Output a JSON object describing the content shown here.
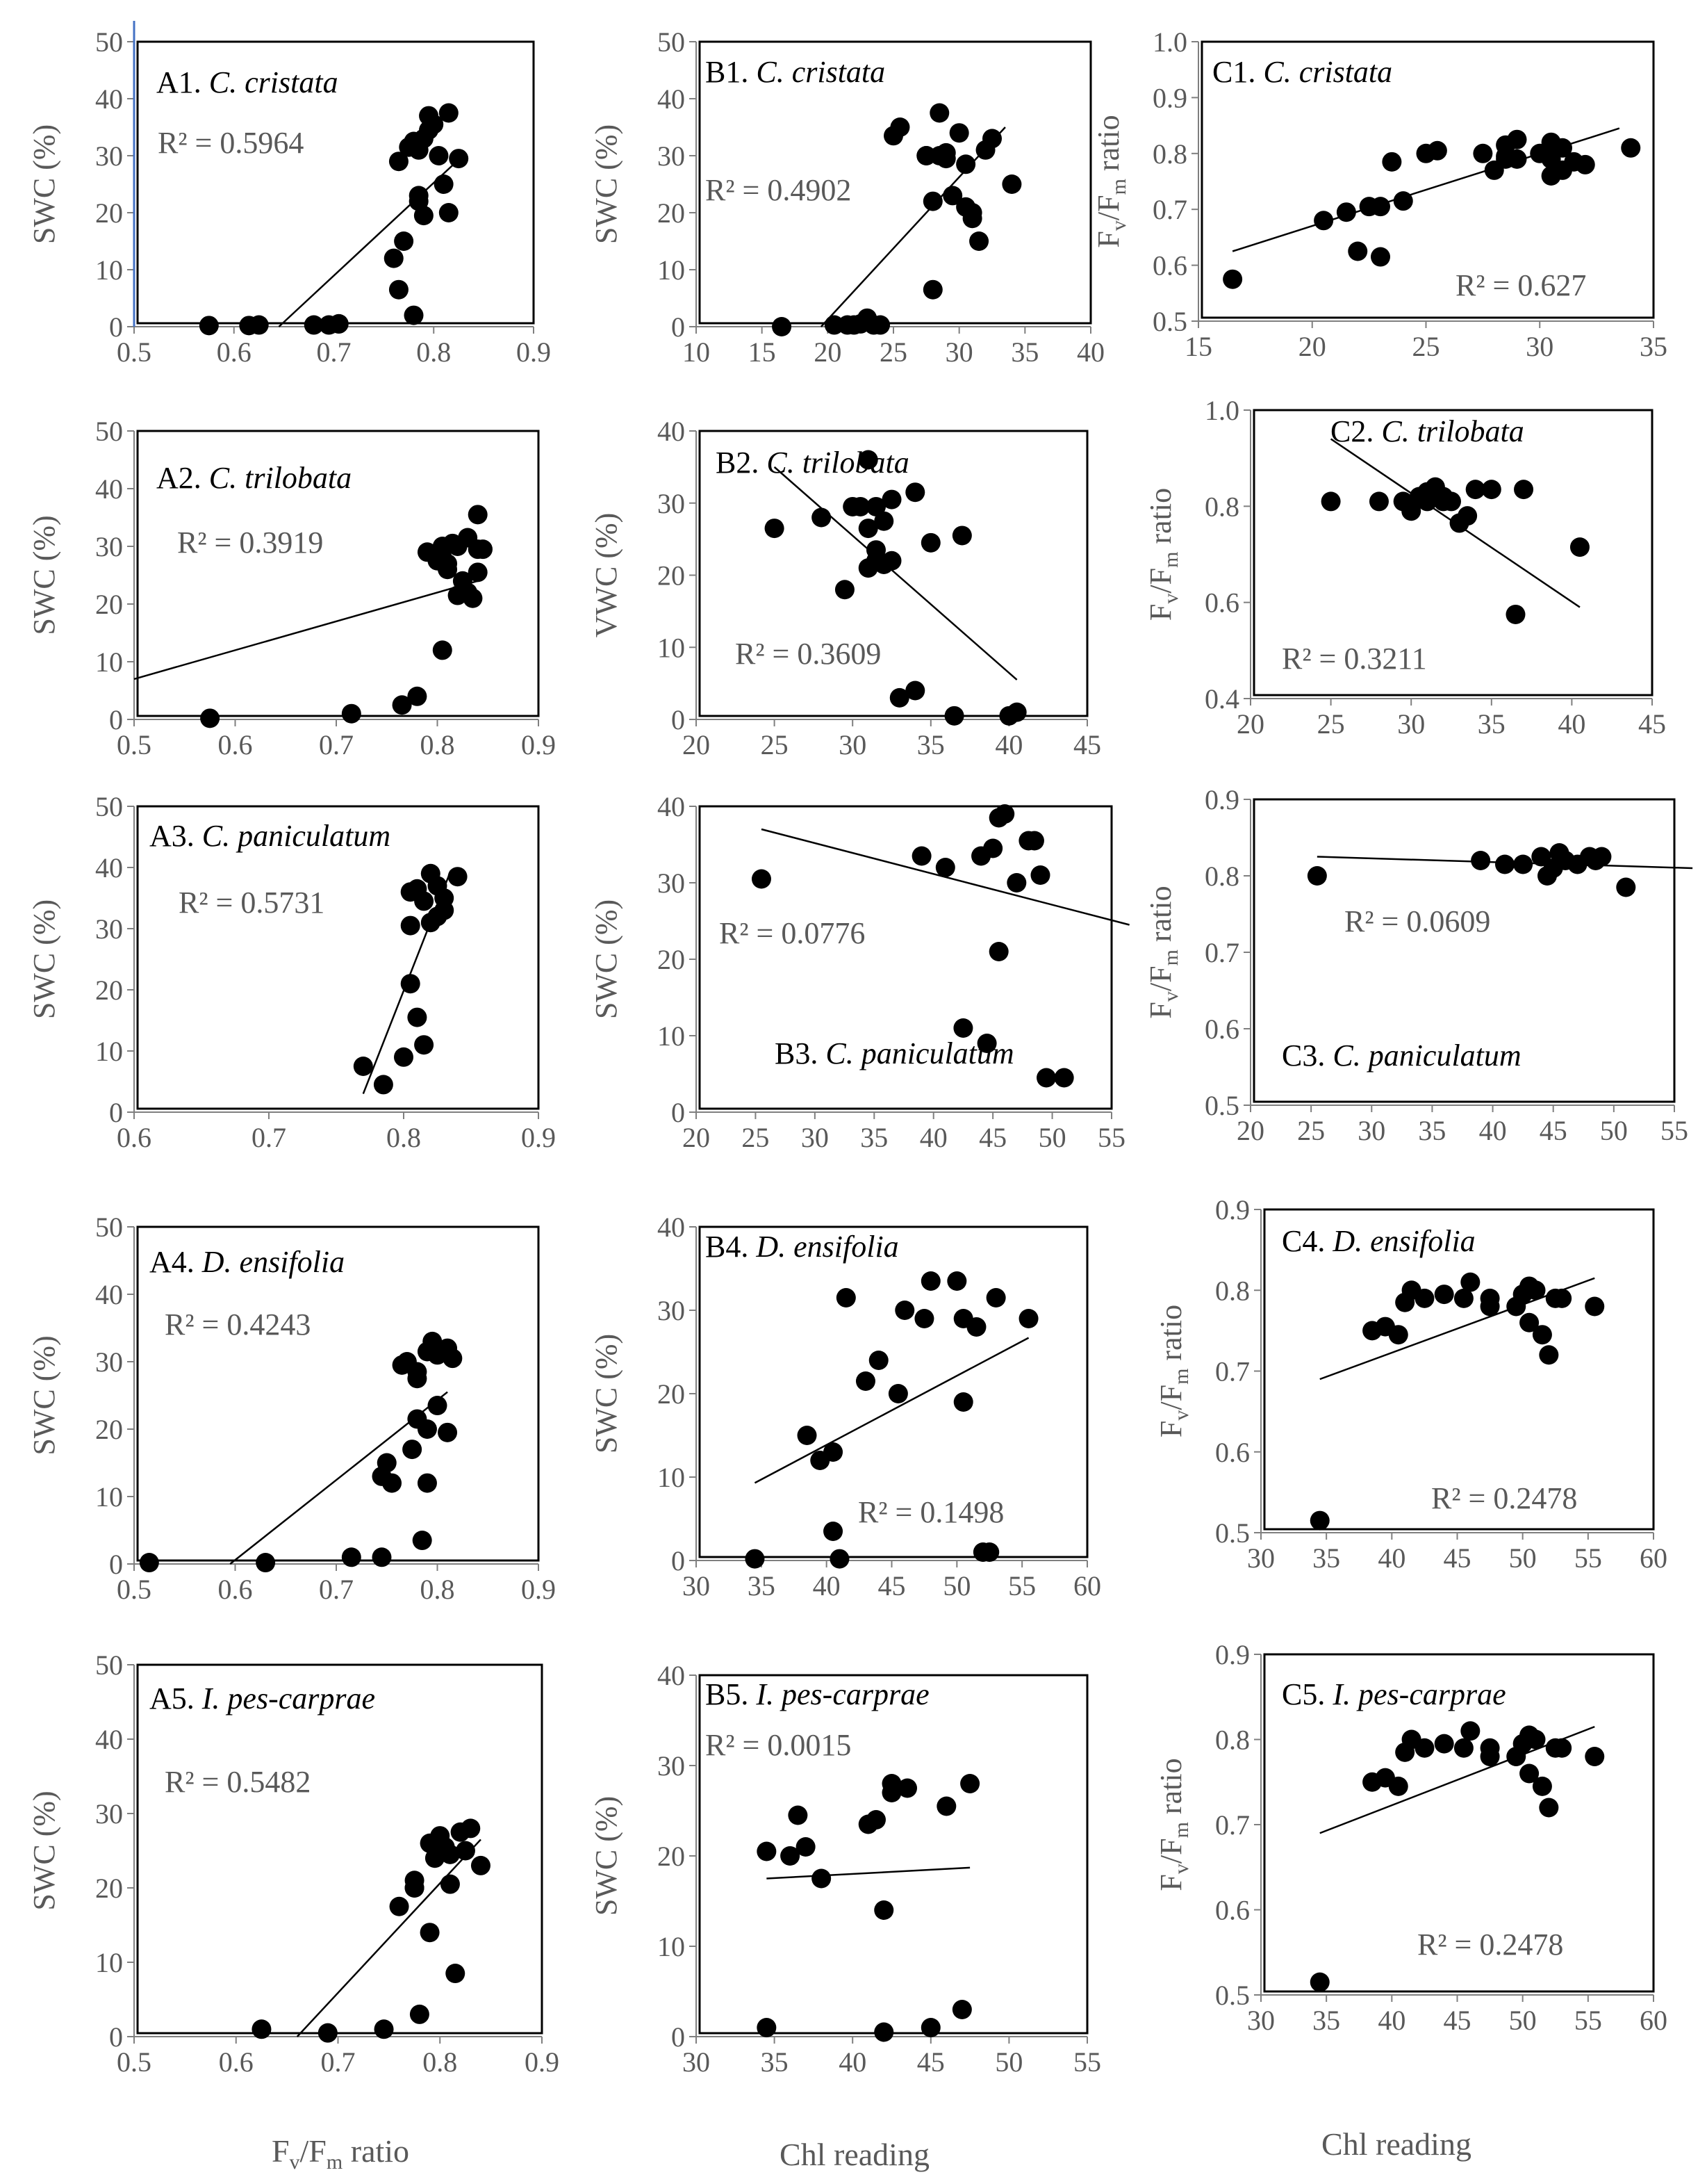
{
  "x_axis_labels": {
    "fvfm": "Fv/Fm ratio",
    "chl": "Chl reading"
  },
  "chart_data": [
    {
      "id": "A1",
      "type": "scatter",
      "label": "A1.",
      "species": "C. cristata",
      "r2_text": "R² = 0.5964",
      "ylabel": "SWC (%)",
      "xlim": [
        0.5,
        0.9
      ],
      "ylim": [
        0,
        50
      ],
      "xticks": [
        "0.5",
        "0.6",
        "0.7",
        "0.8",
        "0.9"
      ],
      "yticks": [
        "0",
        "10",
        "20",
        "30",
        "40",
        "50"
      ],
      "x": [
        0.575,
        0.615,
        0.625,
        0.68,
        0.695,
        0.705,
        0.705,
        0.76,
        0.765,
        0.77,
        0.765,
        0.775,
        0.78,
        0.785,
        0.79,
        0.795,
        0.795,
        0.8,
        0.805,
        0.81,
        0.815,
        0.815,
        0.825,
        0.785,
        0.79,
        0.785,
        0.78
      ],
      "y": [
        0.2,
        0.2,
        0.3,
        0.3,
        0.3,
        0.5,
        0.5,
        12,
        6.5,
        15,
        29,
        31.5,
        32.5,
        31,
        33,
        37,
        34.5,
        35.5,
        30,
        25,
        37.5,
        20,
        29.5,
        23,
        19.5,
        22,
        2
      ],
      "trend": [
        [
          0.645,
          0
        ],
        [
          0.82,
          28.5
        ]
      ]
    },
    {
      "id": "B1",
      "type": "scatter",
      "label": "B1.",
      "species": "C. cristata",
      "r2_text": "R² = 0.4902",
      "ylabel": "SWC (%)",
      "xlim": [
        10,
        40
      ],
      "ylim": [
        0,
        50
      ],
      "xticks": [
        "10",
        "15",
        "20",
        "25",
        "30",
        "35",
        "40"
      ],
      "yticks": [
        "0",
        "10",
        "20",
        "30",
        "40",
        "50"
      ],
      "x": [
        16.5,
        20.5,
        21.5,
        22,
        23,
        22.5,
        23.5,
        24,
        25,
        25.5,
        27.5,
        28,
        28.5,
        28.5,
        29,
        29.5,
        30,
        30.5,
        31,
        31,
        31.5,
        32,
        32.5,
        34,
        28,
        29,
        30.5,
        27.5
      ],
      "y": [
        0,
        0.3,
        0.3,
        0.3,
        1.5,
        0.5,
        0.3,
        0.3,
        33.5,
        35,
        30,
        22,
        37.5,
        30,
        29.5,
        23,
        34,
        28.5,
        20,
        19,
        15,
        31,
        33,
        25,
        6.5,
        30.5,
        21,
        30
      ],
      "trend": [
        [
          19.5,
          0
        ],
        [
          33.5,
          35
        ]
      ]
    },
    {
      "id": "C1",
      "type": "scatter",
      "label": "C1.",
      "species": "C. cristata",
      "r2_text": "R² = 0.627",
      "ylabel": "Fv/Fm ratio",
      "xlim": [
        15,
        35
      ],
      "ylim": [
        0.5,
        1.0
      ],
      "xticks": [
        "15",
        "20",
        "25",
        "30",
        "35"
      ],
      "yticks": [
        "0.5",
        "0.6",
        "0.7",
        "0.8",
        "0.9",
        "1.0"
      ],
      "x": [
        16.5,
        20.5,
        21.5,
        22,
        22.5,
        23,
        23,
        23.5,
        24,
        25,
        25.5,
        27.5,
        28,
        28.5,
        28.5,
        29,
        29,
        30,
        30.5,
        30.5,
        31,
        31,
        31.5,
        32,
        34,
        28.5,
        30.5
      ],
      "y": [
        0.575,
        0.68,
        0.695,
        0.625,
        0.705,
        0.705,
        0.615,
        0.785,
        0.715,
        0.8,
        0.805,
        0.8,
        0.77,
        0.815,
        0.79,
        0.825,
        0.79,
        0.8,
        0.82,
        0.76,
        0.81,
        0.77,
        0.785,
        0.78,
        0.81,
        0.795,
        0.79
      ],
      "trend": [
        [
          16.5,
          0.625
        ],
        [
          33.5,
          0.845
        ]
      ]
    },
    {
      "id": "A2",
      "type": "scatter",
      "label": "A2.",
      "species": "C. trilobata",
      "r2_text": "R² = 0.3919",
      "ylabel": "SWC (%)",
      "xlim": [
        0.5,
        0.9
      ],
      "ylim": [
        0,
        50
      ],
      "xticks": [
        "0.5",
        "0.6",
        "0.7",
        "0.8",
        "0.9"
      ],
      "yticks": [
        "0",
        "10",
        "20",
        "30",
        "40",
        "50"
      ],
      "x": [
        0.575,
        0.715,
        0.765,
        0.78,
        0.79,
        0.8,
        0.805,
        0.805,
        0.81,
        0.815,
        0.82,
        0.82,
        0.825,
        0.83,
        0.83,
        0.835,
        0.84,
        0.84,
        0.845,
        0.84,
        0.81,
        0.805
      ],
      "y": [
        0.2,
        1,
        2.5,
        4,
        29,
        27.5,
        28,
        30,
        26,
        30.5,
        30,
        21.5,
        24,
        22,
        31.5,
        21,
        25.5,
        35.5,
        29.5,
        29.5,
        27,
        12
      ],
      "trend": [
        [
          0.5,
          7
        ],
        [
          0.84,
          24
        ]
      ]
    },
    {
      "id": "B2",
      "type": "scatter",
      "label": "B2.",
      "species": "C. trilobata",
      "r2_text": "R² = 0.3609",
      "ylabel": "VWC (%)",
      "xlim": [
        20,
        45
      ],
      "ylim": [
        0,
        40
      ],
      "xticks": [
        "20",
        "25",
        "30",
        "35",
        "40",
        "45"
      ],
      "yticks": [
        "0",
        "10",
        "20",
        "30",
        "40"
      ],
      "x": [
        25,
        28,
        29.5,
        30,
        30.5,
        31,
        31,
        31.5,
        32,
        32.5,
        32,
        31,
        31.5,
        34,
        35,
        37,
        33,
        34,
        36.5,
        40,
        40.5,
        31.5,
        32.5
      ],
      "y": [
        26.5,
        28,
        18,
        29.5,
        29.5,
        26.5,
        21,
        29.5,
        27.5,
        30.5,
        21.5,
        36,
        23.5,
        31.5,
        24.5,
        25.5,
        3,
        4,
        0.5,
        0.5,
        1,
        22,
        22
      ],
      "trend": [
        [
          25,
          35
        ],
        [
          40.5,
          5.5
        ]
      ]
    },
    {
      "id": "C2",
      "type": "scatter",
      "label": "C2.",
      "species": "C. trilobata",
      "r2_text": "R² = 0.3211",
      "ylabel": "Fv/Fm ratio",
      "xlim": [
        20,
        45
      ],
      "ylim": [
        0.4,
        1.0
      ],
      "xticks": [
        "20",
        "25",
        "30",
        "35",
        "40",
        "45"
      ],
      "yticks": [
        "0.4",
        "0.6",
        "0.8",
        "1.0"
      ],
      "x": [
        25,
        28,
        29.5,
        30,
        30.5,
        31,
        31,
        31.5,
        32,
        32,
        32.5,
        33,
        34,
        35,
        36.5,
        37,
        40.5,
        31.5,
        33.5
      ],
      "y": [
        0.81,
        0.81,
        0.81,
        0.79,
        0.82,
        0.83,
        0.81,
        0.84,
        0.82,
        0.81,
        0.81,
        0.765,
        0.835,
        0.835,
        0.575,
        0.835,
        0.715,
        0.82,
        0.78
      ],
      "trend": [
        [
          25,
          0.94
        ],
        [
          40.5,
          0.59
        ]
      ]
    },
    {
      "id": "A3",
      "type": "scatter",
      "label": "A3.",
      "species": "C.  paniculatum",
      "r2_text": "R² = 0.5731",
      "ylabel": "SWC (%)",
      "xlim": [
        0.6,
        0.9
      ],
      "ylim": [
        0,
        50
      ],
      "xticks": [
        "0.6",
        "0.7",
        "0.8",
        "0.9"
      ],
      "yticks": [
        "0",
        "10",
        "20",
        "30",
        "40",
        "50"
      ],
      "x": [
        0.77,
        0.785,
        0.8,
        0.81,
        0.815,
        0.805,
        0.805,
        0.81,
        0.815,
        0.82,
        0.82,
        0.825,
        0.83,
        0.83,
        0.84,
        0.805,
        0.825
      ],
      "y": [
        7.5,
        4.5,
        9,
        15.5,
        11,
        21,
        30.5,
        36.5,
        34.5,
        31,
        39,
        37,
        33,
        35,
        38.5,
        36,
        32
      ],
      "trend": [
        [
          0.77,
          3
        ],
        [
          0.835,
          39.5
        ]
      ]
    },
    {
      "id": "B3",
      "type": "scatter",
      "label": "B3.",
      "species": "C.  paniculatum",
      "r2_text": "R² = 0.0776",
      "ylabel": "SWC (%)",
      "xlim": [
        20,
        55
      ],
      "ylim": [
        0,
        40
      ],
      "xticks": [
        "20",
        "25",
        "30",
        "35",
        "40",
        "45",
        "50",
        "55"
      ],
      "yticks": [
        "0",
        "10",
        "20",
        "30",
        "40"
      ],
      "x": [
        25.5,
        39,
        41,
        42.5,
        44,
        44.5,
        45,
        45.5,
        46,
        47,
        48,
        48.5,
        49,
        49.5,
        51,
        45.5
      ],
      "y": [
        30.5,
        33.5,
        32,
        11,
        33.5,
        9,
        34.5,
        38.5,
        39,
        30,
        35.5,
        35.5,
        31,
        4.5,
        4.5,
        21
      ],
      "trend": [
        [
          25.5,
          37
        ],
        [
          56.5,
          24.5
        ]
      ]
    },
    {
      "id": "C3",
      "type": "scatter",
      "label": "C3.",
      "species": "C.  paniculatum",
      "r2_text": "R² = 0.0609",
      "ylabel": "Fv/Fm ratio",
      "xlim": [
        20,
        55
      ],
      "ylim": [
        0.5,
        0.9
      ],
      "xticks": [
        "20",
        "25",
        "30",
        "35",
        "40",
        "45",
        "50",
        "55"
      ],
      "yticks": [
        "0.5",
        "0.6",
        "0.7",
        "0.8",
        "0.9"
      ],
      "x": [
        25.5,
        39,
        41,
        42.5,
        44,
        44.5,
        45,
        45.5,
        46,
        47,
        48,
        48.5,
        49,
        51
      ],
      "y": [
        0.8,
        0.82,
        0.815,
        0.815,
        0.825,
        0.8,
        0.81,
        0.83,
        0.82,
        0.815,
        0.825,
        0.82,
        0.825,
        0.785
      ],
      "trend": [
        [
          25.5,
          0.825
        ],
        [
          56.5,
          0.81
        ]
      ]
    },
    {
      "id": "A4",
      "type": "scatter",
      "label": "A4.",
      "species": "D. ensifolia",
      "r2_text": "R² = 0.4243",
      "ylabel": "SWC (%)",
      "xlim": [
        0.5,
        0.9
      ],
      "ylim": [
        0,
        50
      ],
      "xticks": [
        "0.5",
        "0.6",
        "0.7",
        "0.8",
        "0.9"
      ],
      "yticks": [
        "0",
        "10",
        "20",
        "30",
        "40",
        "50"
      ],
      "x": [
        0.515,
        0.63,
        0.715,
        0.745,
        0.745,
        0.75,
        0.755,
        0.765,
        0.77,
        0.775,
        0.78,
        0.78,
        0.785,
        0.79,
        0.79,
        0.795,
        0.8,
        0.8,
        0.81,
        0.81,
        0.815,
        0.78,
        0.79
      ],
      "y": [
        0.2,
        0.2,
        1,
        1,
        13,
        15,
        12,
        29.5,
        30,
        17,
        28.5,
        21.5,
        3.5,
        20,
        31.5,
        33,
        23.5,
        31,
        32,
        19.5,
        30.5,
        27.5,
        12
      ],
      "trend": [
        [
          0.595,
          0
        ],
        [
          0.81,
          25.5
        ]
      ]
    },
    {
      "id": "B4",
      "type": "scatter",
      "label": "B4.",
      "species": "D. ensifolia",
      "r2_text": "R² = 0.1498",
      "ylabel": "SWC (%)",
      "xlim": [
        30,
        60
      ],
      "ylim": [
        0,
        40
      ],
      "xticks": [
        "30",
        "35",
        "40",
        "45",
        "50",
        "55",
        "60"
      ],
      "yticks": [
        "0",
        "10",
        "20",
        "30",
        "40"
      ],
      "x": [
        34.5,
        38.5,
        39.5,
        40.5,
        40.5,
        41,
        41.5,
        43,
        44,
        45.5,
        46,
        47.5,
        48,
        50,
        50.5,
        50.5,
        51.5,
        52,
        52.5,
        53,
        55.5
      ],
      "y": [
        0.2,
        15,
        12,
        3.5,
        13,
        0.2,
        31.5,
        21.5,
        24,
        20,
        30,
        29,
        33.5,
        33.5,
        29,
        19,
        28,
        1,
        1,
        31.5,
        29
      ],
      "trend": [
        [
          34.5,
          9.3
        ],
        [
          55.5,
          26.7
        ]
      ]
    },
    {
      "id": "C4",
      "type": "scatter",
      "label": "C4.",
      "species": "D. ensifolia",
      "r2_text": "R² = 0.2478",
      "ylabel": "Fv/Fm ratio",
      "xlim": [
        30,
        60
      ],
      "ylim": [
        0.5,
        0.9
      ],
      "xticks": [
        "30",
        "35",
        "40",
        "45",
        "50",
        "55",
        "60"
      ],
      "yticks": [
        "0.5",
        "0.6",
        "0.7",
        "0.8",
        "0.9"
      ],
      "x": [
        34.5,
        38.5,
        39.5,
        40.5,
        41,
        41.5,
        42.5,
        44,
        45.5,
        46,
        47.5,
        47.5,
        49.5,
        50,
        50.5,
        50.5,
        51,
        51.5,
        52,
        52.5,
        53,
        55.5
      ],
      "y": [
        0.515,
        0.75,
        0.755,
        0.745,
        0.785,
        0.8,
        0.79,
        0.795,
        0.79,
        0.81,
        0.78,
        0.79,
        0.78,
        0.795,
        0.76,
        0.805,
        0.8,
        0.745,
        0.72,
        0.79,
        0.79,
        0.78
      ],
      "trend": [
        [
          34.5,
          0.69
        ],
        [
          55.5,
          0.815
        ]
      ]
    },
    {
      "id": "A5",
      "type": "scatter",
      "label": "A5.",
      "species": "I. pes-carprae",
      "r2_text": "R² = 0.5482",
      "ylabel": "SWC (%)",
      "xlim": [
        0.5,
        0.9
      ],
      "ylim": [
        0,
        50
      ],
      "xticks": [
        "0.5",
        "0.6",
        "0.7",
        "0.8",
        "0.9"
      ],
      "yticks": [
        "0",
        "10",
        "20",
        "30",
        "40",
        "50"
      ],
      "x": [
        0.625,
        0.69,
        0.745,
        0.76,
        0.775,
        0.775,
        0.78,
        0.79,
        0.79,
        0.795,
        0.8,
        0.805,
        0.81,
        0.815,
        0.82,
        0.825,
        0.83,
        0.84,
        0.81,
        0.775
      ],
      "y": [
        1,
        0.5,
        1,
        17.5,
        20,
        21,
        3,
        14,
        26,
        24,
        27,
        25.5,
        20.5,
        8.5,
        27.5,
        25,
        28,
        23,
        24.5,
        20
      ],
      "trend": [
        [
          0.66,
          0
        ],
        [
          0.84,
          26.5
        ]
      ]
    },
    {
      "id": "B5",
      "type": "scatter",
      "label": "B5.",
      "species": "I. pes-carprae",
      "r2_text": "R² = 0.0015",
      "ylabel": "SWC (%)",
      "xlim": [
        30,
        55
      ],
      "ylim": [
        0,
        40
      ],
      "xticks": [
        "30",
        "35",
        "40",
        "45",
        "50",
        "55"
      ],
      "yticks": [
        "0",
        "10",
        "20",
        "30",
        "40"
      ],
      "x": [
        34.5,
        34.5,
        36,
        36.5,
        37,
        38,
        41,
        41.5,
        42,
        42,
        42.5,
        42.5,
        43.5,
        45,
        46,
        47,
        47.5
      ],
      "y": [
        1,
        20.5,
        20,
        24.5,
        21,
        17.5,
        23.5,
        24,
        14,
        0.5,
        28,
        27,
        27.5,
        1,
        25.5,
        3,
        28
      ],
      "trend": [
        [
          34.5,
          17.5
        ],
        [
          47.5,
          18.7
        ]
      ]
    },
    {
      "id": "C5",
      "type": "scatter",
      "label": "C5.",
      "species": "I. pes-carprae",
      "r2_text": "R² = 0.2478",
      "ylabel": "Fv/Fm ratio",
      "xlim": [
        30,
        60
      ],
      "ylim": [
        0.5,
        0.9
      ],
      "xticks": [
        "30",
        "35",
        "40",
        "45",
        "50",
        "55",
        "60"
      ],
      "yticks": [
        "0.5",
        "0.6",
        "0.7",
        "0.8",
        "0.9"
      ],
      "x": [
        34.5,
        38.5,
        39.5,
        40.5,
        41,
        41.5,
        42.5,
        44,
        45.5,
        46,
        47.5,
        47.5,
        49.5,
        50,
        50.5,
        50.5,
        51,
        51.5,
        52,
        52.5,
        53,
        55.5
      ],
      "y": [
        0.515,
        0.75,
        0.755,
        0.745,
        0.785,
        0.8,
        0.79,
        0.795,
        0.79,
        0.81,
        0.78,
        0.79,
        0.78,
        0.795,
        0.76,
        0.805,
        0.8,
        0.745,
        0.72,
        0.79,
        0.79,
        0.78
      ],
      "trend": [
        [
          34.5,
          0.69
        ],
        [
          55.5,
          0.815
        ]
      ]
    }
  ]
}
